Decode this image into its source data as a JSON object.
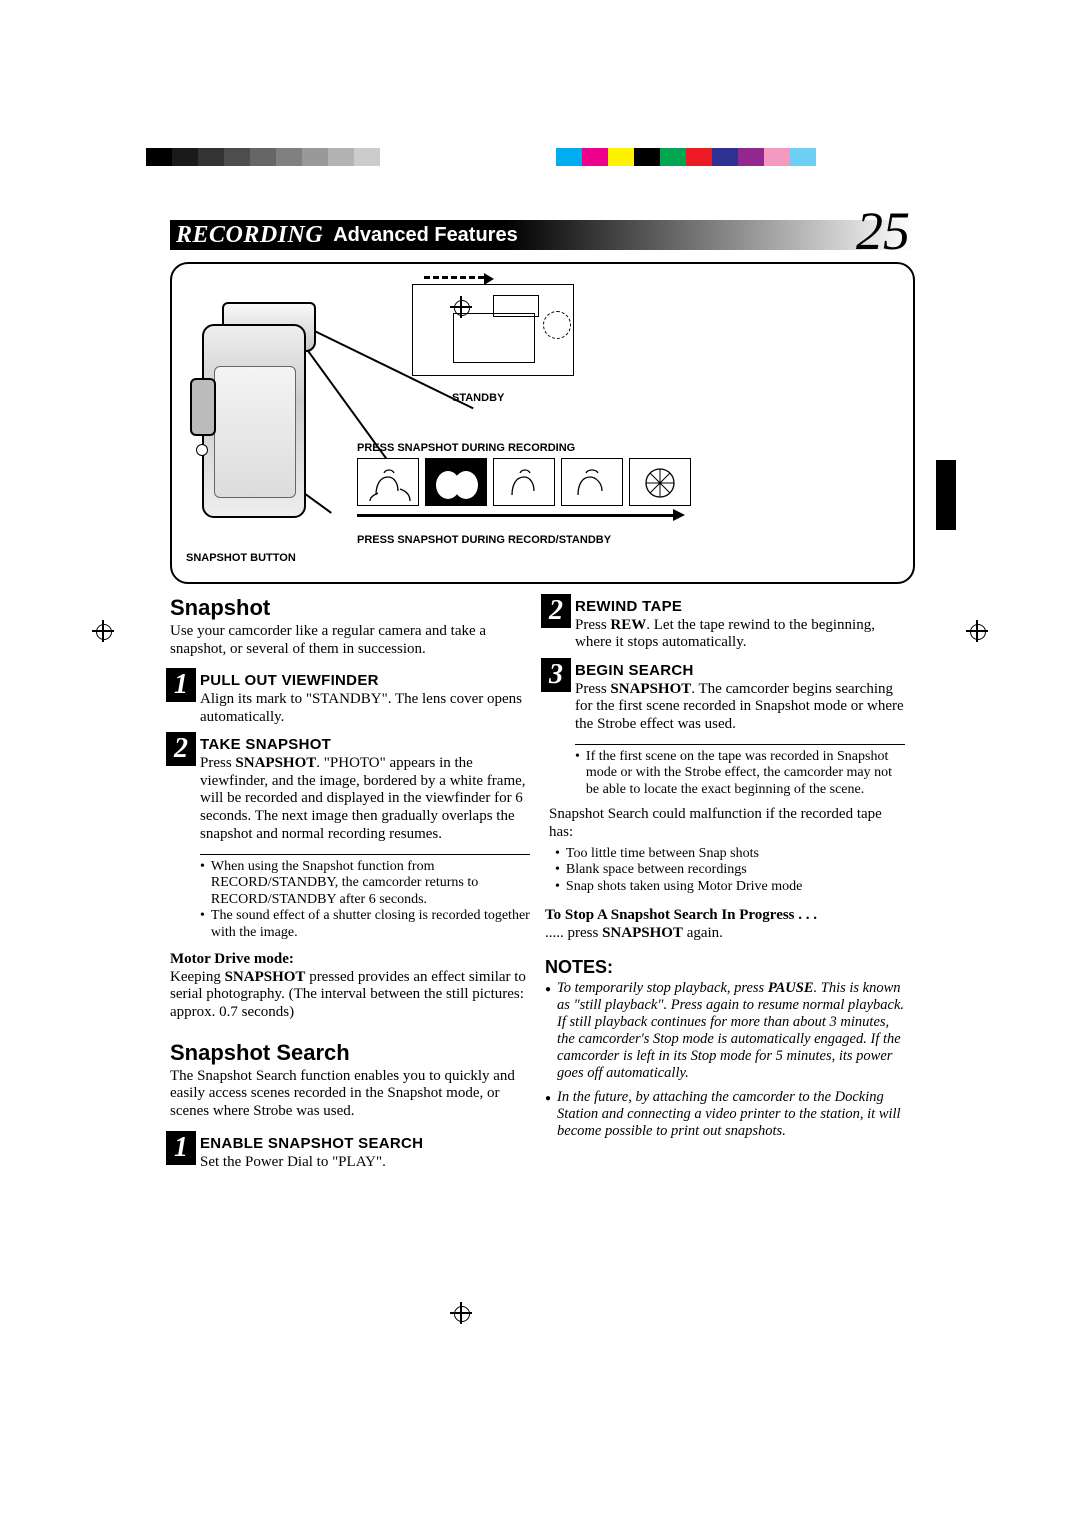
{
  "calibration": {
    "gray_swatches": [
      "#000000",
      "#1a1a1a",
      "#333333",
      "#4d4d4d",
      "#666666",
      "#808080",
      "#999999",
      "#b3b3b3",
      "#cccccc",
      "#ffffff"
    ],
    "color_swatches": [
      "#00aeef",
      "#ec008c",
      "#fff200",
      "#000000",
      "#00a651",
      "#ed1c24",
      "#2e3192",
      "#92278f",
      "#f49ac1",
      "#6dcff6"
    ]
  },
  "header": {
    "section": "RECORDING",
    "subtitle": "Advanced Features",
    "page_number": "25"
  },
  "diagram": {
    "standby_label": "STANDBY",
    "snapshot_button_label": "SNAPSHOT BUTTON",
    "press_during_recording": "PRESS SNAPSHOT DURING RECORDING",
    "press_during_standby": "PRESS SNAPSHOT DURING RECORD/STANDBY"
  },
  "left": {
    "h_snapshot": "Snapshot",
    "snapshot_intro": "Use your camcorder like a regular camera and take a snapshot, or several of them in succession.",
    "step1_title": "PULL OUT VIEWFINDER",
    "step1_body_a": "Align its mark to \"STANDBY\". The lens cover opens automatically.",
    "step2_title": "TAKE SNAPSHOT",
    "step2_body": "Press SNAPSHOT. \"PHOTO\" appears in the viewfinder, and the image, bordered by a white frame, will be recorded and displayed in the viewfinder for 6 seconds. The next image then gradually overlaps the snapshot and normal recording resumes.",
    "step2_sub1": "When using the Snapshot function from RECORD/STANDBY, the camcorder returns to RECORD/STANDBY after 6 seconds.",
    "step2_sub2": "The sound effect of a shutter closing is recorded together with the image.",
    "motor_hdr": "Motor Drive mode:",
    "motor_body": "Keeping SNAPSHOT pressed provides an effect similar to serial photography. (The interval between the still pictures: approx. 0.7 seconds)",
    "h_search": "Snapshot Search",
    "search_intro": "The Snapshot Search function enables you to quickly and easily access scenes recorded in the Snapshot mode, or scenes where Strobe was used.",
    "search1_title": "ENABLE SNAPSHOT SEARCH",
    "search1_body": "Set the Power Dial to \"PLAY\"."
  },
  "right": {
    "step2_title": "REWIND TAPE",
    "step2_body": "Press REW. Let the tape rewind to the beginning, where it stops automatically.",
    "step3_title": "BEGIN SEARCH",
    "step3_body": "Press SNAPSHOT. The camcorder begins searching for the first scene recorded in Snapshot mode or where the Strobe effect was used.",
    "step3_sub1": "If the first scene on the tape was recorded in Snapshot mode or with the Strobe effect, the camcorder may not be able to locate the exact beginning of the scene.",
    "malfunction_intro": "Snapshot Search could malfunction if the recorded tape has:",
    "mal_b1": "Too little time between Snap shots",
    "mal_b2": "Blank space between recordings",
    "mal_b3": "Snap shots taken using Motor Drive mode",
    "stop_hdr": "To Stop A Snapshot Search In Progress . . .",
    "stop_body": "..... press SNAPSHOT again.",
    "notes_hdr": "NOTES:",
    "note1": "To temporarily stop playback, press PAUSE. This is known as \"still playback\". Press again to resume normal playback. If still playback continues for more than about 3 minutes, the camcorder's Stop mode is automatically engaged. If the camcorder is left in its Stop mode for 5 minutes, its power goes off automatically.",
    "note2": "In the future, by attaching the camcorder to the Docking Station and connecting a video printer to the station, it will become possible to print out snapshots."
  }
}
